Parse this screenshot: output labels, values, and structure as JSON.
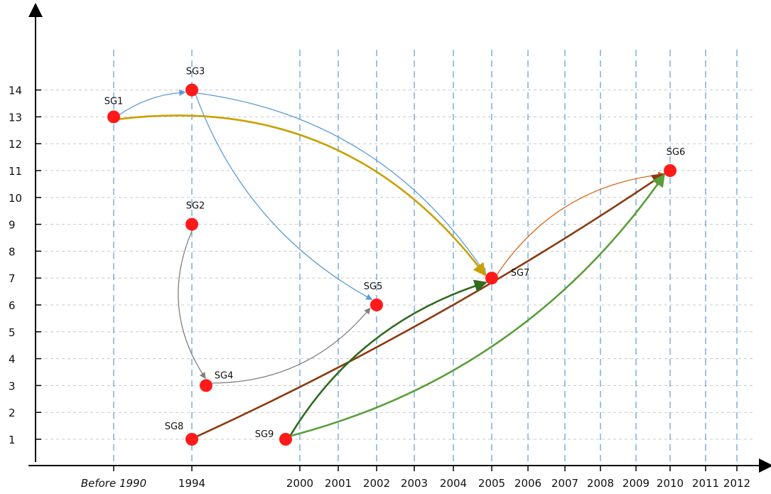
{
  "chart_data": {
    "type": "diagram",
    "x_ticks": [
      "Before 1990",
      "1994",
      "2000",
      "2001",
      "2002",
      "2003",
      "2004",
      "2005",
      "2006",
      "2007",
      "2008",
      "2009",
      "2010",
      "2011",
      "2012"
    ],
    "y_ticks": [
      "1",
      "2",
      "3",
      "4",
      "5",
      "6",
      "7",
      "8",
      "9",
      "10",
      "11",
      "12",
      "13",
      "14"
    ],
    "grid": true,
    "nodes": [
      {
        "id": "SG1",
        "label": "SG1",
        "x": "Before 1990",
        "y": 13
      },
      {
        "id": "SG2",
        "label": "SG2",
        "x": "1994",
        "y": 9
      },
      {
        "id": "SG3",
        "label": "SG3",
        "x": "1994",
        "y": 14
      },
      {
        "id": "SG4",
        "label": "SG4",
        "x": "1994",
        "y": 3
      },
      {
        "id": "SG5",
        "label": "SG5",
        "x": "2002",
        "y": 6
      },
      {
        "id": "SG6",
        "label": "SG6",
        "x": "2010",
        "y": 11
      },
      {
        "id": "SG7",
        "label": "SG7",
        "x": "2005",
        "y": 7
      },
      {
        "id": "SG8",
        "label": "SG8",
        "x": "1994",
        "y": 1
      },
      {
        "id": "SG9",
        "label": "SG9",
        "x": "2000",
        "y": 1
      }
    ],
    "edges": [
      {
        "from": "SG1",
        "to": "SG3",
        "color": "#5b9bd5"
      },
      {
        "from": "SG3",
        "to": "SG5",
        "color": "#5b9bd5"
      },
      {
        "from": "SG3",
        "to": "SG7",
        "color": "#5b9bd5"
      },
      {
        "from": "SG1",
        "to": "SG7",
        "color": "#c9a100"
      },
      {
        "from": "SG2",
        "to": "SG4",
        "color": "#808080"
      },
      {
        "from": "SG4",
        "to": "SG5",
        "color": "#808080"
      },
      {
        "from": "SG7",
        "to": "SG6",
        "color": "#d46a1f"
      },
      {
        "from": "SG8",
        "to": "SG6",
        "color": "#8b3a10"
      },
      {
        "from": "SG9",
        "to": "SG7",
        "color": "#2f6b1e"
      },
      {
        "from": "SG9",
        "to": "SG6",
        "color": "#5a9e3a"
      }
    ],
    "colors": {
      "node": "#ff1a1a",
      "vgrid": "#5b9bd5",
      "hgrid": "#c8c8c8",
      "axis": "#000000"
    }
  }
}
